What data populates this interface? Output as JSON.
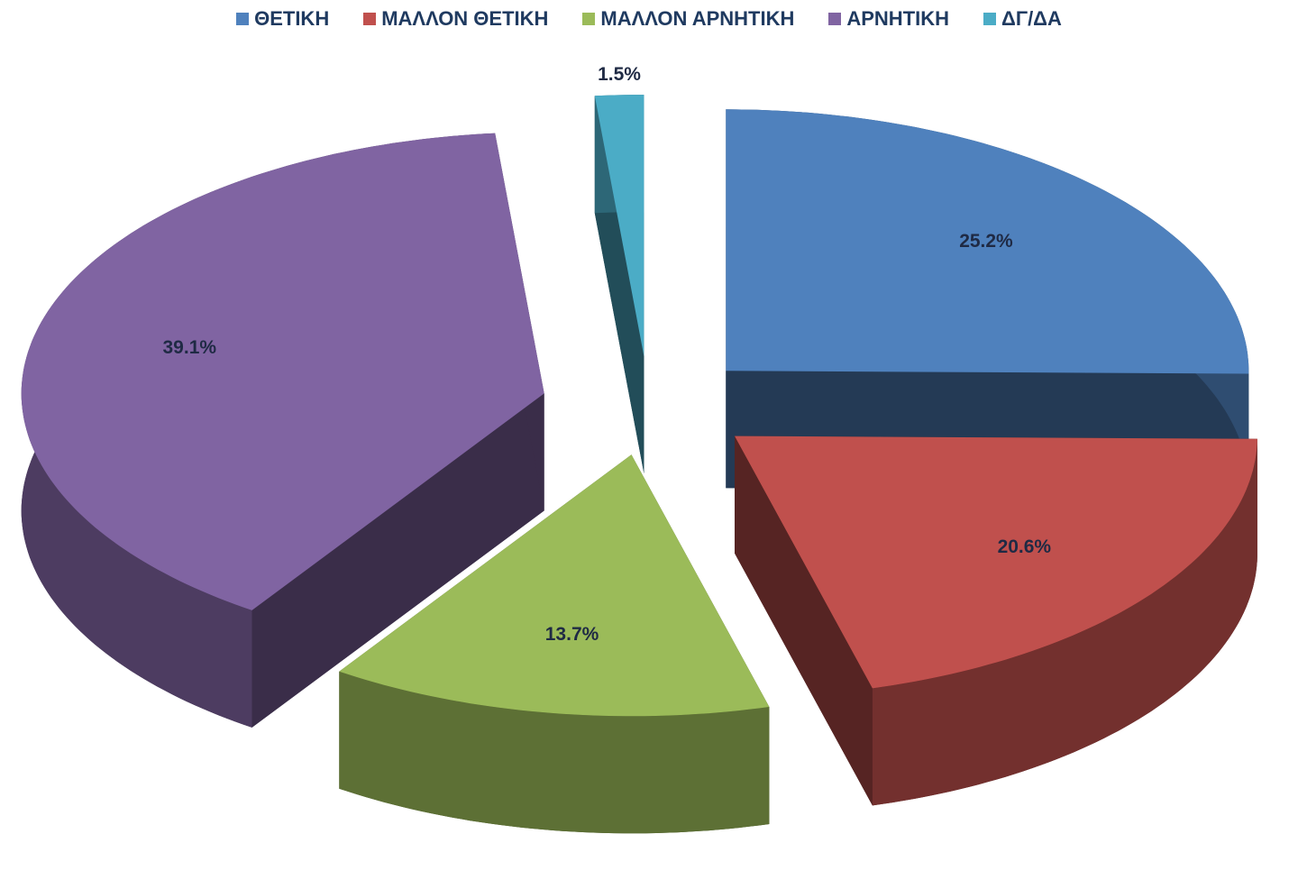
{
  "chart_data": {
    "type": "pie3d",
    "categories": [
      "ΘΕΤΙΚΗ",
      "ΜΑΛΛΟΝ ΘΕΤΙΚΗ",
      "ΜΑΛΛΟΝ ΑΡΝΗΤΙΚΗ",
      "ΑΡΝΗΤΙΚΗ",
      "ΔΓ/ΔΑ"
    ],
    "values": [
      25.2,
      20.6,
      13.7,
      39.1,
      1.5
    ],
    "value_labels": [
      "25.2%",
      "20.6%",
      "13.7%",
      "39.1%",
      "1.5%"
    ],
    "colors": [
      "#4f81bd",
      "#c0504d",
      "#9bbb59",
      "#8064a2",
      "#4bacc6"
    ],
    "legend": "top"
  }
}
